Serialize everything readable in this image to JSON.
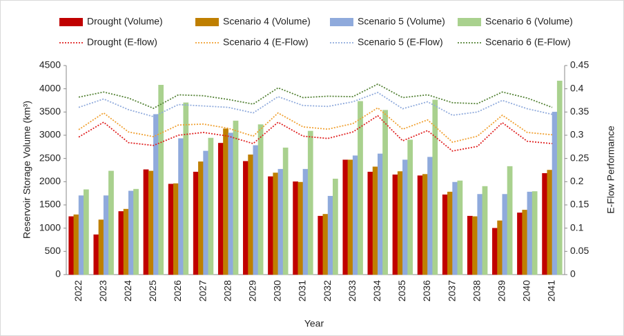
{
  "chart_data": {
    "type": "bar",
    "categories": [
      "2022",
      "2023",
      "2024",
      "2025",
      "2026",
      "2027",
      "2028",
      "2029",
      "2030",
      "2031",
      "2032",
      "2033",
      "2034",
      "2035",
      "2036",
      "2037",
      "2038",
      "2039",
      "2040",
      "2041"
    ],
    "x_label": "Year",
    "y_label": "Reservoir Storage Volume (km³)",
    "y2_label": "E-Flow Performance",
    "ylim": [
      0,
      4500
    ],
    "yticks": [
      0,
      500,
      1000,
      1500,
      2000,
      2500,
      3000,
      3500,
      4000,
      4500
    ],
    "y2lim": [
      0,
      0.45
    ],
    "y2ticks": [
      0,
      0.05,
      0.1,
      0.15,
      0.2,
      0.25,
      0.3,
      0.35,
      0.4,
      0.45
    ],
    "grid": false,
    "series": [
      {
        "name": "Drought (Volume)",
        "type": "bar",
        "color": "#c00000",
        "values": [
          1250,
          860,
          1360,
          2260,
          1950,
          2210,
          2830,
          2440,
          2110,
          2000,
          1260,
          2470,
          2210,
          2150,
          2130,
          1720,
          1260,
          1000,
          1330,
          2180
        ]
      },
      {
        "name": "Scenario 4 (Volume)",
        "type": "bar",
        "color": "#bf7f00",
        "values": [
          1290,
          1180,
          1410,
          2230,
          1960,
          2430,
          3140,
          2580,
          2190,
          1990,
          1300,
          2470,
          2320,
          2220,
          2160,
          1780,
          1250,
          1160,
          1390,
          2250
        ]
      },
      {
        "name": "Scenario 5 (Volume)",
        "type": "bar",
        "color": "#8faadc",
        "values": [
          1700,
          1700,
          1800,
          3450,
          2930,
          2660,
          3050,
          2780,
          2270,
          2270,
          1690,
          2560,
          2600,
          2470,
          2530,
          1990,
          1730,
          1730,
          1780,
          3500
        ]
      },
      {
        "name": "Scenario 6 (Volume)",
        "type": "bar",
        "color": "#a9d18e",
        "values": [
          1830,
          2230,
          1840,
          4080,
          3700,
          2940,
          3310,
          3230,
          2730,
          3090,
          2060,
          3730,
          3540,
          2900,
          3760,
          2020,
          1900,
          2330,
          1790,
          4170
        ]
      },
      {
        "name": "Drought (E-flow)",
        "type": "line",
        "axis": "y2",
        "color": "#e02020",
        "values": [
          0.296,
          0.328,
          0.284,
          0.278,
          0.3,
          0.306,
          0.298,
          0.282,
          0.328,
          0.298,
          0.293,
          0.307,
          0.342,
          0.288,
          0.31,
          0.266,
          0.276,
          0.327,
          0.287,
          0.282
        ]
      },
      {
        "name": "Scenario 4 (E-Flow)",
        "type": "line",
        "axis": "y2",
        "color": "#f0a030",
        "values": [
          0.312,
          0.348,
          0.307,
          0.297,
          0.322,
          0.324,
          0.315,
          0.298,
          0.348,
          0.318,
          0.313,
          0.325,
          0.359,
          0.313,
          0.333,
          0.285,
          0.298,
          0.343,
          0.306,
          0.301
        ]
      },
      {
        "name": "Scenario 5 (E-Flow)",
        "type": "line",
        "axis": "y2",
        "color": "#8faadc",
        "values": [
          0.36,
          0.378,
          0.355,
          0.34,
          0.366,
          0.363,
          0.36,
          0.348,
          0.383,
          0.364,
          0.362,
          0.372,
          0.392,
          0.357,
          0.372,
          0.343,
          0.35,
          0.375,
          0.357,
          0.345
        ]
      },
      {
        "name": "Scenario 6 (E-Flow)",
        "type": "line",
        "axis": "y2",
        "color": "#548235",
        "values": [
          0.382,
          0.393,
          0.38,
          0.358,
          0.387,
          0.385,
          0.377,
          0.367,
          0.402,
          0.381,
          0.384,
          0.383,
          0.41,
          0.381,
          0.387,
          0.37,
          0.368,
          0.393,
          0.38,
          0.36
        ]
      }
    ]
  }
}
